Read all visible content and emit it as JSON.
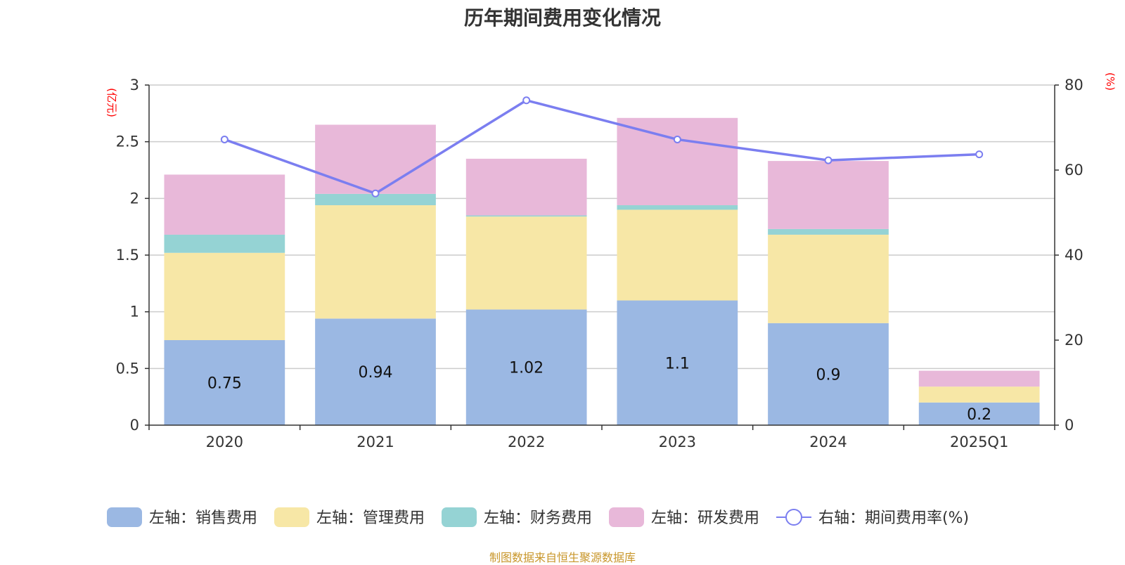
{
  "chart_data": {
    "type": "bar",
    "title": "历年期间费用变化情况",
    "categories": [
      "2020",
      "2021",
      "2022",
      "2023",
      "2024",
      "2025Q1"
    ],
    "left_axis": {
      "unit": "(亿元)",
      "ylim": [
        0,
        3
      ],
      "ticks": [
        "0",
        "0.5",
        "1",
        "1.5",
        "2",
        "2.5",
        "3"
      ]
    },
    "right_axis": {
      "unit": "(%)",
      "ylim": [
        0,
        80
      ],
      "ticks": [
        "0",
        "20",
        "40",
        "60",
        "80"
      ]
    },
    "series": [
      {
        "name": "左轴：销售费用",
        "type": "bar",
        "stack": true,
        "axis": "left",
        "color": "#9bb8e3",
        "values": [
          0.75,
          0.94,
          1.02,
          1.1,
          0.9,
          0.2
        ],
        "labels": [
          "0.75",
          "0.94",
          "1.02",
          "1.1",
          "0.9",
          "0.2"
        ]
      },
      {
        "name": "左轴：管理费用",
        "type": "bar",
        "stack": true,
        "axis": "left",
        "color": "#f7e7a6",
        "values": [
          0.77,
          1.0,
          0.82,
          0.8,
          0.78,
          0.14
        ]
      },
      {
        "name": "左轴：财务费用",
        "type": "bar",
        "stack": true,
        "axis": "left",
        "color": "#95d3d4",
        "values": [
          0.16,
          0.1,
          0.01,
          0.04,
          0.05,
          0.0
        ]
      },
      {
        "name": "左轴：研发费用",
        "type": "bar",
        "stack": true,
        "axis": "left",
        "color": "#e8b8d9",
        "values": [
          0.53,
          0.61,
          0.5,
          0.77,
          0.6,
          0.14
        ]
      },
      {
        "name": "右轴：期间费用率(%)",
        "type": "line",
        "axis": "right",
        "color": "#7b7ef0",
        "values": [
          67.2,
          54.5,
          76.4,
          67.2,
          62.3,
          63.7
        ]
      }
    ],
    "legend_position": "bottom",
    "grid": true
  },
  "source_note": "制图数据来自恒生聚源数据库"
}
